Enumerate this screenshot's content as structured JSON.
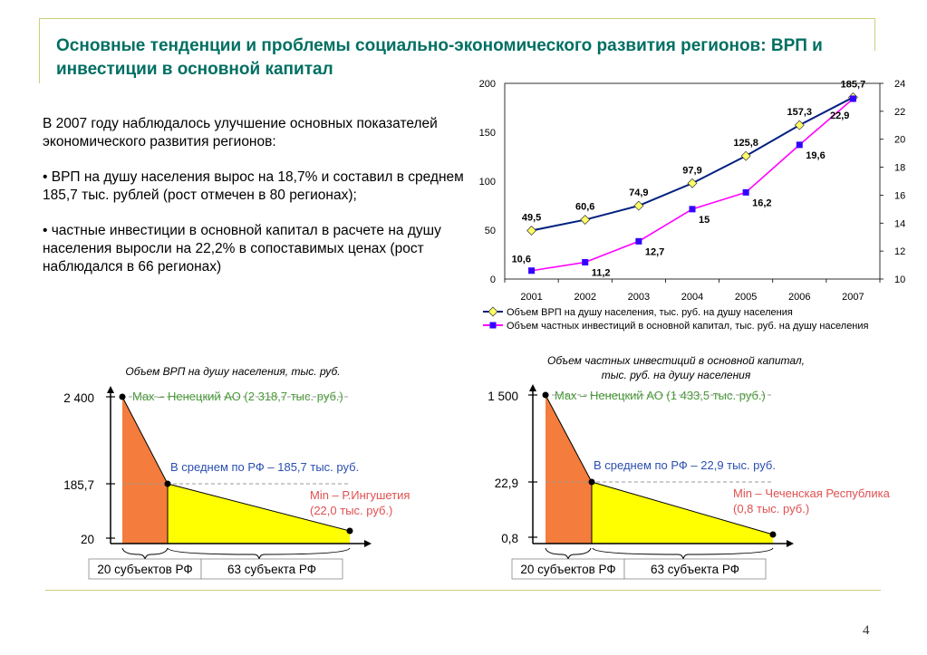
{
  "title": "Основные тенденции и проблемы социально-экономического развития регионов: ВРП и инвестиции в основной капитал",
  "paragraphs": [
    "В 2007 году наблюдалось улучшение основных показателей экономического развития регионов:",
    "• ВРП на душу населения вырос на 18,7% и составил в среднем 185,7 тыс. рублей (рост отмечен в 80 регионах);",
    "• частные инвестиции в основной капитал в расчете на душу населения выросли на 22,2% в сопоставимых ценах (рост наблюдался в 66 регионах)"
  ],
  "page_number": "4",
  "chart_data": [
    {
      "type": "line",
      "categories": [
        "2001",
        "2002",
        "2003",
        "2004",
        "2005",
        "2006",
        "2007"
      ],
      "series": [
        {
          "name": "Объем ВРП на душу населения, тыс. руб. на душу населения",
          "axis": "left",
          "color": "#001f80",
          "marker_color": "#ffff66",
          "values": [
            49.5,
            60.6,
            74.9,
            97.9,
            125.8,
            157.3,
            185.7
          ],
          "labels": [
            "49,5",
            "60,6",
            "74,9",
            "97,9",
            "125,8",
            "157,3",
            "185,7"
          ]
        },
        {
          "name": "Объем частных инвестиций в основной капитал, тыс. руб. на душу населения",
          "axis": "right",
          "color": "#ff00ff",
          "marker_color": "#3300ff",
          "values": [
            10.6,
            11.2,
            12.7,
            15,
            16.2,
            19.6,
            22.9
          ],
          "labels": [
            "10,6",
            "11,2",
            "12,7",
            "15",
            "16,2",
            "19,6",
            "22,9"
          ]
        }
      ],
      "y_left": {
        "min": 0,
        "max": 200,
        "ticks": [
          "0",
          "50",
          "100",
          "150",
          "200"
        ]
      },
      "y_right": {
        "min": 10,
        "max": 24,
        "ticks": [
          "10",
          "12",
          "14",
          "16",
          "18",
          "20",
          "22",
          "24"
        ]
      },
      "legend_position": "bottom"
    },
    {
      "type": "area",
      "title": "Объем ВРП на душу населения, тыс. руб.",
      "y_ticks": [
        "2 400",
        "185,7",
        "20"
      ],
      "segments": [
        {
          "label": "20 субъектов РФ",
          "color": "#f47c3c"
        },
        {
          "label": "63 субъекта РФ",
          "color": "#ffff00"
        }
      ],
      "annotations": {
        "max": "Max – Ненецкий АО (2 318,7 тыс. руб.)",
        "avg": "В среднем по РФ – 185,7 тыс. руб.",
        "min_line1": "Min – Р.Ингушетия",
        "min_line2": "(22,0 тыс. руб.)"
      },
      "annotation_colors": {
        "max": "#4a9a3a",
        "avg": "#2a4fb0",
        "min": "#e05050"
      }
    },
    {
      "type": "area",
      "title_line1": "Объем частных инвестиций в основной капитал,",
      "title_line2": "тыс. руб. на душу населения",
      "y_ticks": [
        "1 500",
        "22,9",
        "0,8"
      ],
      "segments": [
        {
          "label": "20 субъектов РФ",
          "color": "#f47c3c"
        },
        {
          "label": "63 субъекта РФ",
          "color": "#ffff00"
        }
      ],
      "annotations": {
        "max": "Max – Ненецкий АО (1 433,5 тыс. руб.)",
        "avg": "В среднем по РФ – 22,9 тыс. руб.",
        "min_line1": "Min – Чеченская Республика",
        "min_line2": "(0,8 тыс. руб.)"
      },
      "annotation_colors": {
        "max": "#4a9a3a",
        "avg": "#2a4fb0",
        "min": "#e05050"
      }
    }
  ]
}
